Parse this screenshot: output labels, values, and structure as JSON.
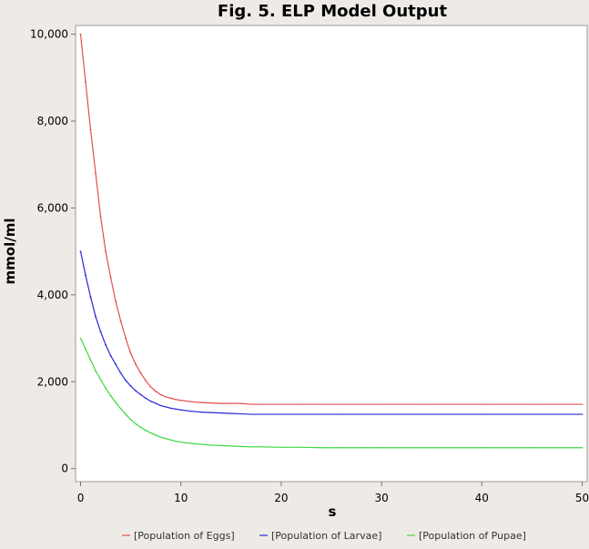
{
  "chart_data": {
    "type": "line",
    "title": "Fig. 5. ELP Model Output",
    "xlabel": "s",
    "ylabel": "mmol/ml",
    "xlim": [
      -0.5,
      50.5
    ],
    "ylim": [
      -300,
      10200
    ],
    "x_ticks": [
      0,
      10,
      20,
      30,
      40,
      50
    ],
    "x_tick_labels": [
      "0",
      "10",
      "20",
      "30",
      "40",
      "50"
    ],
    "y_ticks": [
      0,
      2000,
      4000,
      6000,
      8000,
      10000
    ],
    "y_tick_labels": [
      "0",
      "2,000",
      "4,000",
      "6,000",
      "8,000",
      "10,000"
    ],
    "grid": false,
    "legend_position": "bottom",
    "x": [
      0,
      0.5,
      1,
      1.5,
      2,
      2.5,
      3,
      3.5,
      4,
      4.5,
      5,
      5.5,
      6,
      6.5,
      7,
      7.5,
      8,
      8.5,
      9,
      9.5,
      10,
      11,
      12,
      13,
      14,
      15,
      16,
      17,
      18,
      20,
      22,
      24,
      26,
      28,
      30,
      35,
      40,
      45,
      50
    ],
    "series": [
      {
        "name": "[Population of Eggs]",
        "color": "#e05050",
        "values": [
          10000,
          8900,
          7800,
          6800,
          5800,
          5000,
          4400,
          3850,
          3400,
          3000,
          2650,
          2400,
          2200,
          2020,
          1880,
          1780,
          1700,
          1650,
          1620,
          1590,
          1570,
          1540,
          1520,
          1510,
          1500,
          1500,
          1500,
          1480,
          1480,
          1480,
          1480,
          1480,
          1480,
          1480,
          1480,
          1480,
          1480,
          1480,
          1480
        ]
      },
      {
        "name": "[Population of Larvae]",
        "color": "#2828d8",
        "values": [
          5000,
          4450,
          3950,
          3500,
          3150,
          2850,
          2600,
          2400,
          2200,
          2030,
          1900,
          1790,
          1700,
          1620,
          1550,
          1500,
          1450,
          1420,
          1390,
          1370,
          1350,
          1320,
          1300,
          1290,
          1280,
          1270,
          1260,
          1250,
          1250,
          1250,
          1250,
          1250,
          1250,
          1250,
          1250,
          1250,
          1250,
          1250,
          1250
        ]
      },
      {
        "name": "[Population of Pupae]",
        "color": "#40d840",
        "values": [
          3000,
          2750,
          2500,
          2250,
          2050,
          1850,
          1680,
          1520,
          1380,
          1250,
          1130,
          1030,
          950,
          880,
          820,
          770,
          720,
          690,
          660,
          630,
          610,
          580,
          560,
          540,
          530,
          520,
          510,
          500,
          500,
          490,
          490,
          480,
          480,
          480,
          480,
          480,
          480,
          480,
          480
        ]
      }
    ]
  }
}
